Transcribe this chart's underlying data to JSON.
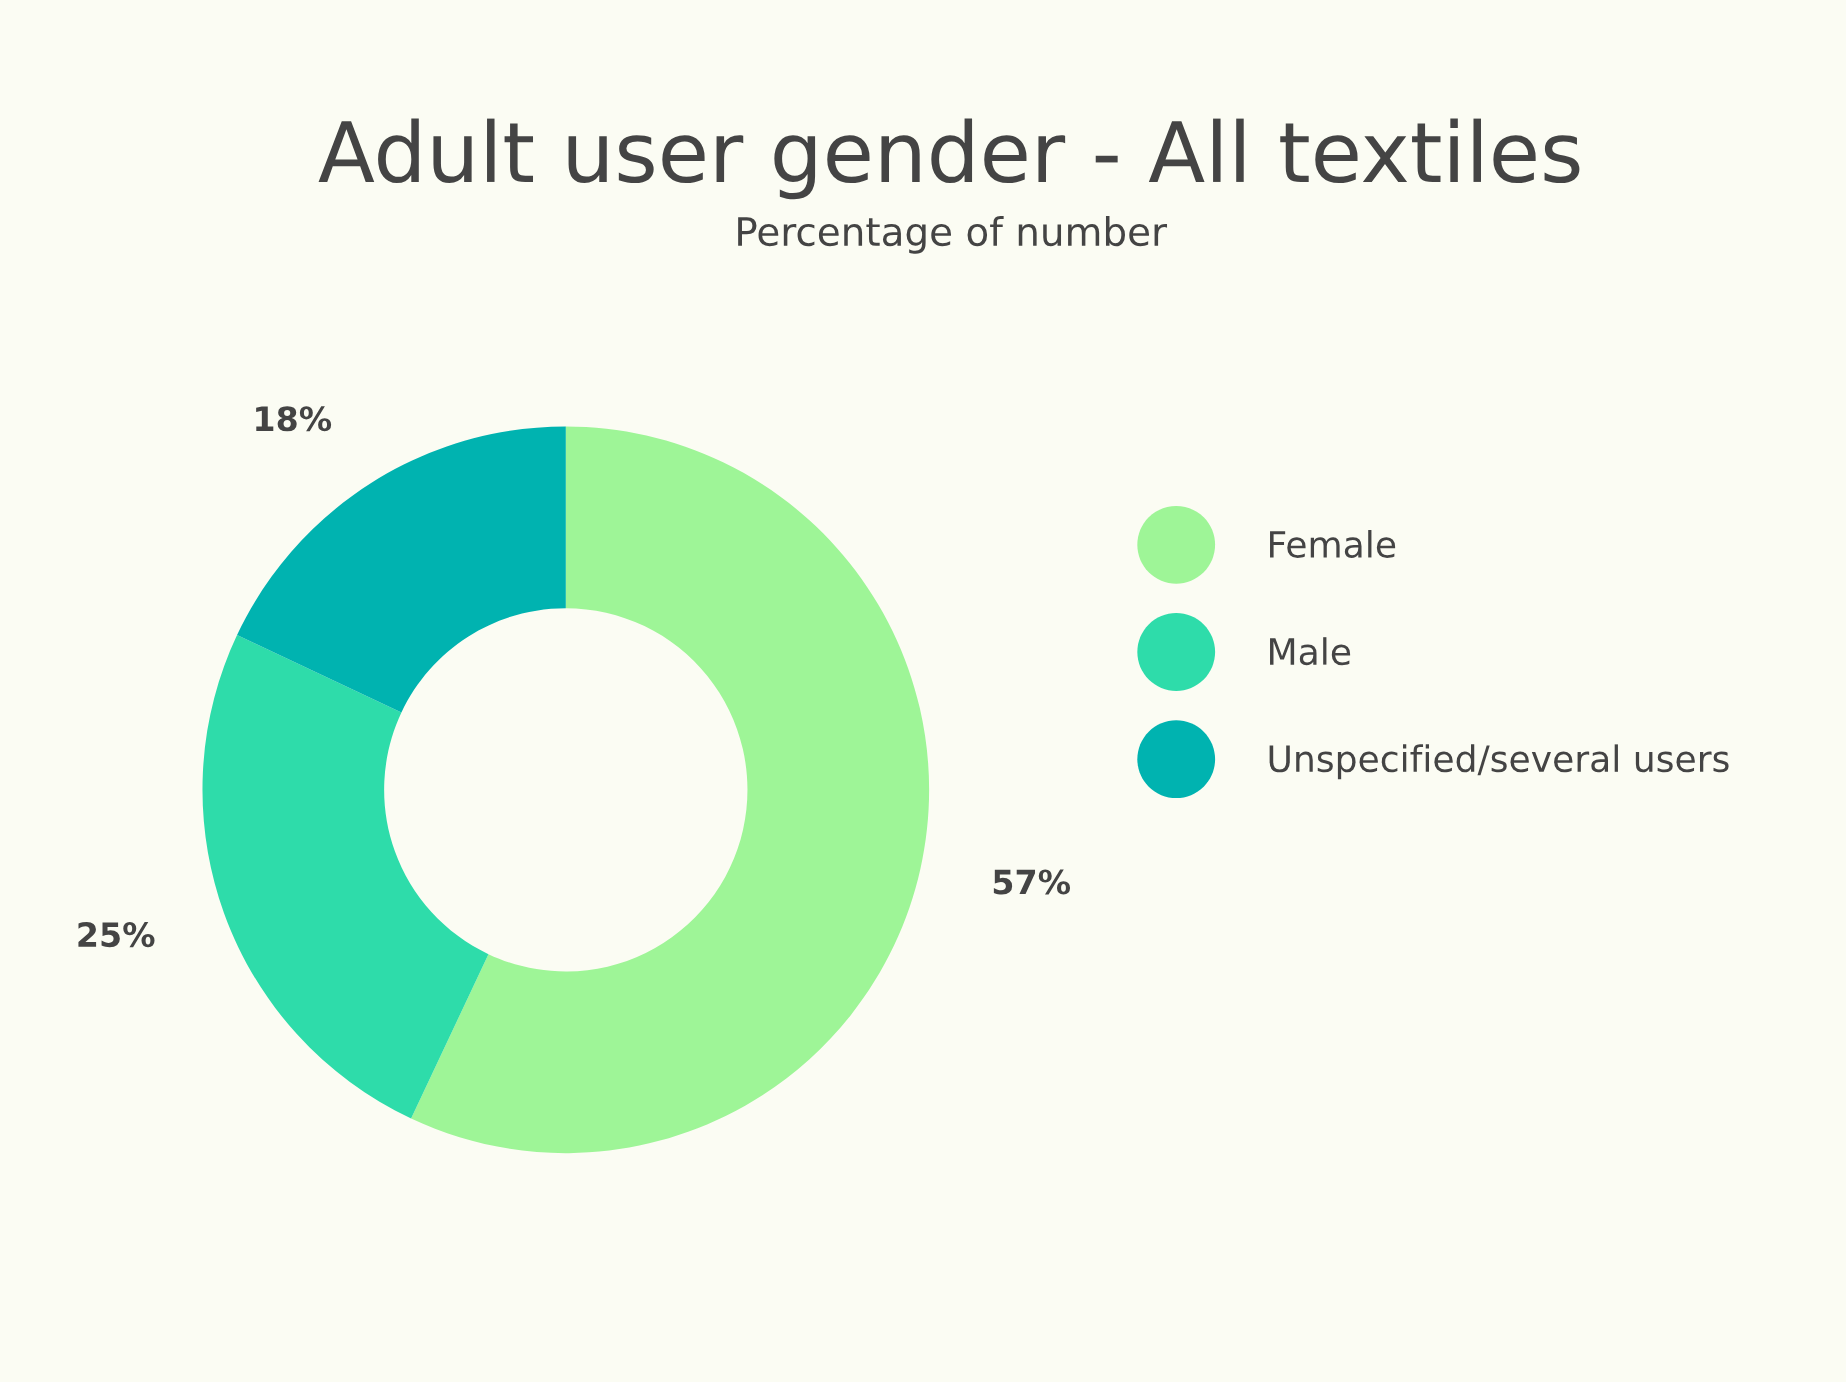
{
  "chart_data": {
    "type": "donut",
    "title": "Adult user gender - All textiles",
    "subtitle": "Percentage of number",
    "categories": [
      "Female",
      "Male",
      "Unspecified/several users"
    ],
    "values": [
      57,
      25,
      18
    ],
    "colors": [
      "#9ef597",
      "#2edcaa",
      "#00b3b0"
    ],
    "value_labels": [
      "57%",
      "25%",
      "18%"
    ],
    "legend": "right"
  }
}
